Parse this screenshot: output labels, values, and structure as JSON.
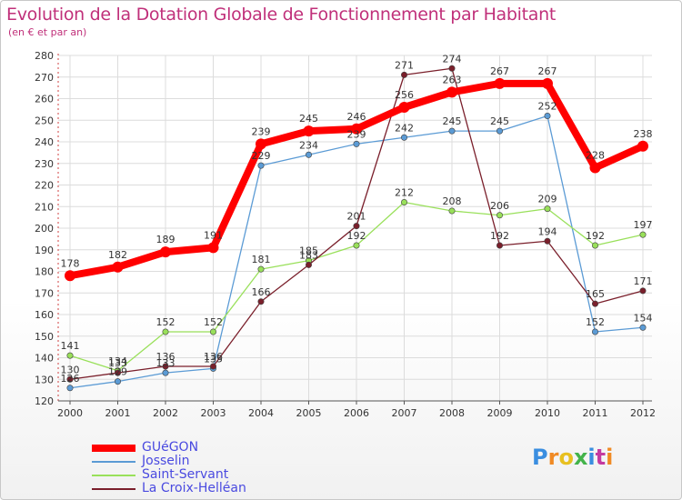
{
  "chart_data": {
    "type": "line",
    "title": "Evolution de la Dotation Globale de Fonctionnement par Habitant",
    "subtitle": "(en € et par an)",
    "xlabel": "",
    "ylabel": "",
    "x": [
      "2000",
      "2001",
      "2002",
      "2003",
      "2004",
      "2005",
      "2006",
      "2007",
      "2008",
      "2009",
      "2010",
      "2011",
      "2012"
    ],
    "ylim": [
      120,
      280
    ],
    "yticks": [
      120,
      130,
      140,
      150,
      160,
      170,
      180,
      190,
      200,
      210,
      220,
      230,
      240,
      250,
      260,
      270,
      280
    ],
    "grid": true,
    "legend_position": "bottom-left",
    "series": [
      {
        "name": "GUéGON",
        "color": "#ff0000",
        "values": [
          178,
          182,
          189,
          191,
          239,
          245,
          246,
          256,
          263,
          267,
          267,
          228,
          238
        ]
      },
      {
        "name": "Josselin",
        "color": "#5b9bd5",
        "values": [
          126,
          129,
          133,
          135,
          229,
          234,
          239,
          242,
          245,
          245,
          252,
          152,
          154
        ]
      },
      {
        "name": "Saint-Servant",
        "color": "#99e05a",
        "values": [
          141,
          134,
          152,
          152,
          181,
          185,
          192,
          212,
          208,
          206,
          209,
          192,
          197
        ]
      },
      {
        "name": "La Croix-Helléan",
        "color": "#7a1f2b",
        "values": [
          130,
          133,
          136,
          136,
          166,
          183,
          201,
          271,
          274,
          192,
          194,
          165,
          171
        ]
      }
    ]
  },
  "brand": {
    "text": "Proxiti",
    "colors": [
      "#3a8ee0",
      "#f08a24",
      "#e8c020",
      "#43b34a",
      "#3a8ee0",
      "#c43aa0",
      "#f08a24"
    ]
  }
}
